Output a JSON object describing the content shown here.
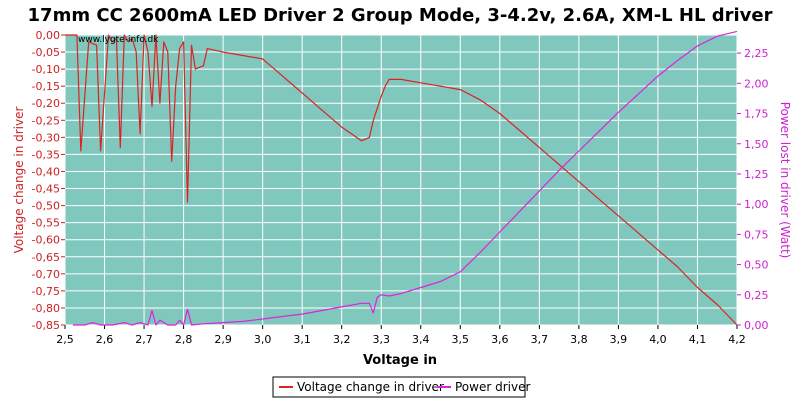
{
  "chart_data": {
    "type": "line",
    "title": "17mm CC 2600mA LED Driver 2 Group Mode, 3-4.2v, 2.6A, XM-L HL driver",
    "watermark": "www.lygte-info.dk",
    "xlabel": "Voltage in",
    "ylabel_left": "Voltage change in driver",
    "ylabel_right": "Power lost in driver (Watt)",
    "xlim": [
      2.5,
      4.2
    ],
    "ylim_left": [
      -0.85,
      0.0
    ],
    "ylim_right": [
      0.0,
      2.4
    ],
    "x_ticks": [
      "2,5",
      "2,6",
      "2,7",
      "2,8",
      "2,9",
      "3,0",
      "3,1",
      "3,2",
      "3,3",
      "3,4",
      "3,5",
      "3,6",
      "3,7",
      "3,8",
      "3,9",
      "4,0",
      "4,1",
      "4,2"
    ],
    "y_left_ticks": [
      "0,00",
      "-0,05",
      "-0,10",
      "-0,15",
      "-0,20",
      "-0,25",
      "-0,30",
      "-0,35",
      "-0,40",
      "-0,45",
      "-0,50",
      "-0,55",
      "-0,60",
      "-0,65",
      "-0,70",
      "-0,75",
      "-0,80",
      "-0,85"
    ],
    "y_right_ticks": [
      "0,00",
      "0,25",
      "0,50",
      "0,75",
      "1,00",
      "1,25",
      "1,50",
      "1,75",
      "2,00",
      "2,25"
    ],
    "grid": true,
    "legend_position": "bottom-center",
    "colors": {
      "plot_bg": "#80c8be",
      "grid": "#ffffff",
      "voltage_series": "#dd2222",
      "power_series": "#dd22dd",
      "left_axis_text": "#cc2222",
      "right_axis_text": "#cc22cc"
    },
    "series": [
      {
        "name": "Voltage change in driver",
        "axis": "left",
        "points": [
          [
            2.5,
            0.0
          ],
          [
            2.53,
            0.0
          ],
          [
            2.54,
            -0.34
          ],
          [
            2.56,
            -0.02
          ],
          [
            2.58,
            -0.03
          ],
          [
            2.59,
            -0.34
          ],
          [
            2.61,
            0.0
          ],
          [
            2.62,
            -0.02
          ],
          [
            2.63,
            -0.01
          ],
          [
            2.64,
            -0.33
          ],
          [
            2.65,
            0.0
          ],
          [
            2.66,
            -0.02
          ],
          [
            2.67,
            -0.01
          ],
          [
            2.68,
            -0.05
          ],
          [
            2.69,
            -0.29
          ],
          [
            2.7,
            0.0
          ],
          [
            2.71,
            -0.05
          ],
          [
            2.72,
            -0.21
          ],
          [
            2.73,
            0.0
          ],
          [
            2.74,
            -0.2
          ],
          [
            2.75,
            -0.02
          ],
          [
            2.76,
            -0.05
          ],
          [
            2.77,
            -0.37
          ],
          [
            2.78,
            -0.15
          ],
          [
            2.79,
            -0.04
          ],
          [
            2.8,
            -0.02
          ],
          [
            2.81,
            -0.49
          ],
          [
            2.82,
            -0.03
          ],
          [
            2.83,
            -0.1
          ],
          [
            2.85,
            -0.09
          ],
          [
            2.86,
            -0.04
          ],
          [
            2.9,
            -0.05
          ],
          [
            2.95,
            -0.06
          ],
          [
            3.0,
            -0.07
          ],
          [
            3.05,
            -0.12
          ],
          [
            3.1,
            -0.17
          ],
          [
            3.15,
            -0.22
          ],
          [
            3.2,
            -0.27
          ],
          [
            3.25,
            -0.31
          ],
          [
            3.27,
            -0.3
          ],
          [
            3.28,
            -0.25
          ],
          [
            3.3,
            -0.18
          ],
          [
            3.31,
            -0.15
          ],
          [
            3.32,
            -0.13
          ],
          [
            3.35,
            -0.13
          ],
          [
            3.4,
            -0.14
          ],
          [
            3.45,
            -0.15
          ],
          [
            3.5,
            -0.16
          ],
          [
            3.55,
            -0.19
          ],
          [
            3.6,
            -0.23
          ],
          [
            3.65,
            -0.28
          ],
          [
            3.7,
            -0.33
          ],
          [
            3.75,
            -0.38
          ],
          [
            3.8,
            -0.43
          ],
          [
            3.85,
            -0.48
          ],
          [
            3.9,
            -0.53
          ],
          [
            3.95,
            -0.58
          ],
          [
            4.0,
            -0.63
          ],
          [
            4.05,
            -0.68
          ],
          [
            4.1,
            -0.74
          ],
          [
            4.15,
            -0.79
          ],
          [
            4.2,
            -0.85
          ]
        ]
      },
      {
        "name": "Power driver",
        "axis": "right",
        "points": [
          [
            2.52,
            0.0
          ],
          [
            2.55,
            0.0
          ],
          [
            2.57,
            0.02
          ],
          [
            2.59,
            0.0
          ],
          [
            2.62,
            0.0
          ],
          [
            2.65,
            0.02
          ],
          [
            2.67,
            0.0
          ],
          [
            2.69,
            0.02
          ],
          [
            2.71,
            0.0
          ],
          [
            2.72,
            0.12
          ],
          [
            2.73,
            0.0
          ],
          [
            2.74,
            0.04
          ],
          [
            2.76,
            0.0
          ],
          [
            2.78,
            0.0
          ],
          [
            2.79,
            0.04
          ],
          [
            2.8,
            0.0
          ],
          [
            2.81,
            0.13
          ],
          [
            2.82,
            0.0
          ],
          [
            2.85,
            0.01
          ],
          [
            2.9,
            0.02
          ],
          [
            2.95,
            0.03
          ],
          [
            3.0,
            0.05
          ],
          [
            3.05,
            0.07
          ],
          [
            3.1,
            0.09
          ],
          [
            3.15,
            0.12
          ],
          [
            3.2,
            0.15
          ],
          [
            3.25,
            0.18
          ],
          [
            3.27,
            0.18
          ],
          [
            3.28,
            0.1
          ],
          [
            3.29,
            0.23
          ],
          [
            3.3,
            0.25
          ],
          [
            3.32,
            0.24
          ],
          [
            3.35,
            0.26
          ],
          [
            3.4,
            0.31
          ],
          [
            3.45,
            0.36
          ],
          [
            3.5,
            0.44
          ],
          [
            3.55,
            0.6
          ],
          [
            3.6,
            0.77
          ],
          [
            3.65,
            0.94
          ],
          [
            3.7,
            1.11
          ],
          [
            3.75,
            1.28
          ],
          [
            3.8,
            1.44
          ],
          [
            3.85,
            1.6
          ],
          [
            3.9,
            1.76
          ],
          [
            3.95,
            1.91
          ],
          [
            4.0,
            2.06
          ],
          [
            4.05,
            2.19
          ],
          [
            4.1,
            2.31
          ],
          [
            4.15,
            2.39
          ],
          [
            4.2,
            2.43
          ]
        ]
      }
    ]
  }
}
